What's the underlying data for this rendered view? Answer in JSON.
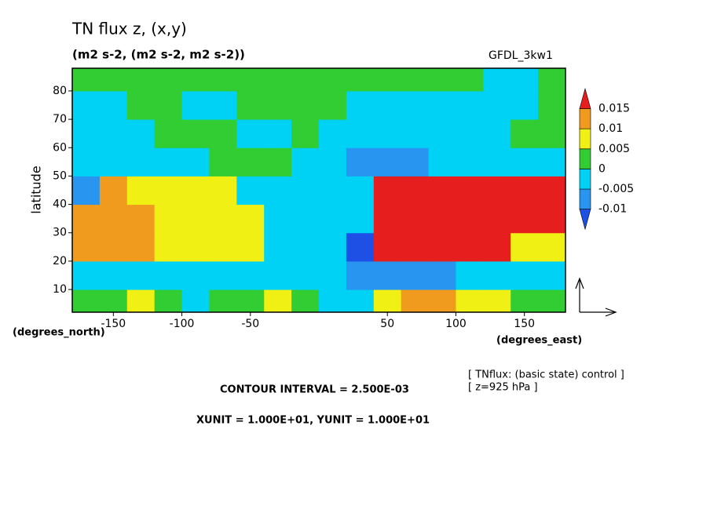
{
  "chart_data": {
    "type": "contour-map",
    "title": "TN flux z, (x,y)",
    "subtitle": "(m2 s-2, (m2 s-2, m2 s-2))",
    "model": "GFDL_3kw1",
    "y_label": "latitude",
    "y_unit_label": "(degrees_north)",
    "x_unit_label": "(degrees_east)",
    "xlim": [
      -180,
      180
    ],
    "ylim": [
      2,
      88
    ],
    "xticks": [
      -150,
      -100,
      -50,
      50,
      100,
      150
    ],
    "yticks": [
      10,
      20,
      30,
      40,
      50,
      60,
      70,
      80
    ],
    "field": {
      "lon": [
        -170,
        -150,
        -130,
        -110,
        -90,
        -70,
        -50,
        -30,
        -10,
        10,
        30,
        50,
        70,
        90,
        110,
        130,
        150,
        170
      ],
      "lat": [
        5,
        15,
        25,
        35,
        45,
        55,
        65,
        75,
        85
      ],
      "values": [
        [
          0.0025,
          0.0025,
          0.0075,
          0.0025,
          -0.0025,
          0.0025,
          0.0025,
          0.0075,
          0.0025,
          -0.0025,
          -0.0025,
          0.0075,
          0.0125,
          0.0125,
          0.0075,
          0.0075,
          0.0025,
          0.0025
        ],
        [
          -0.0025,
          -0.0025,
          -0.0025,
          -0.0025,
          -0.0025,
          -0.0025,
          -0.0025,
          -0.0025,
          -0.0025,
          -0.0025,
          -0.0075,
          -0.0075,
          -0.0075,
          -0.0075,
          -0.0025,
          -0.0025,
          -0.0025,
          -0.0025
        ],
        [
          0.0125,
          0.0125,
          0.0125,
          0.0075,
          0.0075,
          0.0075,
          0.0075,
          -0.0025,
          -0.0025,
          -0.0025,
          -0.012,
          0.017,
          0.017,
          0.017,
          0.017,
          0.017,
          0.0075,
          0.0075
        ],
        [
          0.0125,
          0.0125,
          0.0125,
          0.0075,
          0.0075,
          0.0075,
          0.0075,
          -0.0025,
          -0.0025,
          -0.0025,
          -0.0025,
          0.017,
          0.017,
          0.017,
          0.017,
          0.017,
          0.017,
          0.017
        ],
        [
          -0.0075,
          0.0125,
          0.0075,
          0.0075,
          0.0075,
          0.0075,
          -0.0025,
          -0.0025,
          -0.0025,
          -0.0025,
          -0.0025,
          0.017,
          0.017,
          0.017,
          0.017,
          0.017,
          0.017,
          0.017
        ],
        [
          -0.0025,
          -0.0025,
          -0.0025,
          -0.0025,
          -0.0025,
          0.0025,
          0.0025,
          0.0025,
          -0.0025,
          -0.0025,
          -0.0075,
          -0.0075,
          -0.0075,
          -0.0025,
          -0.0025,
          -0.0025,
          -0.0025,
          -0.0025
        ],
        [
          -0.0025,
          -0.0025,
          -0.0025,
          0.0025,
          0.0025,
          0.0025,
          -0.0025,
          -0.0025,
          0.0025,
          -0.0025,
          -0.0025,
          -0.0025,
          -0.0025,
          -0.0025,
          -0.0025,
          -0.0025,
          0.0025,
          0.0025
        ],
        [
          -0.0025,
          -0.0025,
          0.0025,
          0.0025,
          -0.0025,
          -0.0025,
          0.0025,
          0.0025,
          0.0025,
          0.0025,
          -0.0025,
          -0.0025,
          -0.0025,
          -0.0025,
          -0.0025,
          -0.0025,
          -0.0025,
          0.0025
        ],
        [
          0.0025,
          0.0025,
          0.0025,
          0.0025,
          0.0025,
          0.0025,
          0.0025,
          0.0025,
          0.0025,
          0.0025,
          0.0025,
          0.0025,
          0.0025,
          0.0025,
          0.0025,
          -0.0025,
          -0.0025,
          0.0025
        ]
      ]
    },
    "colorbar": {
      "levels": [
        -0.01,
        -0.005,
        0,
        0.005,
        0.01,
        0.015
      ],
      "colors": [
        "#1e50e6",
        "#2896f0",
        "#00d2f5",
        "#32cd32",
        "#f0f014",
        "#f09b1e",
        "#e61e1e"
      ]
    },
    "contour_interval": "CONTOUR INTERVAL = 2.500E-03",
    "units_note": "XUNIT = 1.000E+01, YUNIT = 1.000E+01",
    "legend_lines": [
      "[ TNflux: (basic state) control ]",
      "[ z=925 hPa ]"
    ]
  }
}
